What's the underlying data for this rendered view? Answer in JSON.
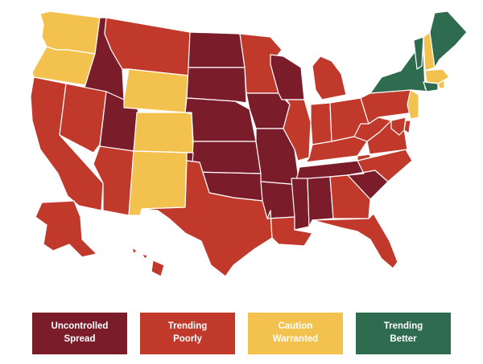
{
  "colors": {
    "uncontrolled": "#7B1C2A",
    "poorly": "#C0392B",
    "caution": "#F2C14E",
    "better": "#2E6B4F",
    "border": "#ffffff"
  },
  "legend": [
    {
      "key": "uncontrolled",
      "label": "Uncontrolled\nSpread"
    },
    {
      "key": "poorly",
      "label": "Trending\nPoorly"
    },
    {
      "key": "caution",
      "label": "Caution\nWarranted"
    },
    {
      "key": "better",
      "label": "Trending\nBetter"
    }
  ],
  "states": [
    {
      "id": "WA",
      "status": "caution"
    },
    {
      "id": "OR",
      "status": "caution"
    },
    {
      "id": "CA",
      "status": "poorly"
    },
    {
      "id": "ID",
      "status": "uncontrolled"
    },
    {
      "id": "NV",
      "status": "poorly"
    },
    {
      "id": "UT",
      "status": "uncontrolled"
    },
    {
      "id": "AZ",
      "status": "poorly"
    },
    {
      "id": "MT",
      "status": "poorly"
    },
    {
      "id": "WY",
      "status": "caution"
    },
    {
      "id": "CO",
      "status": "caution"
    },
    {
      "id": "NM",
      "status": "caution"
    },
    {
      "id": "ND",
      "status": "uncontrolled"
    },
    {
      "id": "SD",
      "status": "uncontrolled"
    },
    {
      "id": "NE",
      "status": "uncontrolled"
    },
    {
      "id": "KS",
      "status": "uncontrolled"
    },
    {
      "id": "OK",
      "status": "uncontrolled"
    },
    {
      "id": "TX",
      "status": "poorly"
    },
    {
      "id": "MN",
      "status": "poorly"
    },
    {
      "id": "IA",
      "status": "uncontrolled"
    },
    {
      "id": "MO",
      "status": "uncontrolled"
    },
    {
      "id": "AR",
      "status": "uncontrolled"
    },
    {
      "id": "LA",
      "status": "poorly"
    },
    {
      "id": "WI",
      "status": "uncontrolled"
    },
    {
      "id": "IL",
      "status": "poorly"
    },
    {
      "id": "MI",
      "status": "poorly"
    },
    {
      "id": "IN",
      "status": "poorly"
    },
    {
      "id": "OH",
      "status": "poorly"
    },
    {
      "id": "KY",
      "status": "poorly"
    },
    {
      "id": "TN",
      "status": "uncontrolled"
    },
    {
      "id": "MS",
      "status": "uncontrolled"
    },
    {
      "id": "AL",
      "status": "uncontrolled"
    },
    {
      "id": "GA",
      "status": "poorly"
    },
    {
      "id": "FL",
      "status": "poorly"
    },
    {
      "id": "SC",
      "status": "uncontrolled"
    },
    {
      "id": "NC",
      "status": "poorly"
    },
    {
      "id": "VA",
      "status": "poorly"
    },
    {
      "id": "WV",
      "status": "poorly"
    },
    {
      "id": "PA",
      "status": "poorly"
    },
    {
      "id": "NY",
      "status": "better"
    },
    {
      "id": "VT",
      "status": "better"
    },
    {
      "id": "NH",
      "status": "caution"
    },
    {
      "id": "ME",
      "status": "better"
    },
    {
      "id": "MA",
      "status": "caution"
    },
    {
      "id": "RI",
      "status": "caution"
    },
    {
      "id": "CT",
      "status": "better"
    },
    {
      "id": "NJ",
      "status": "caution"
    },
    {
      "id": "DE",
      "status": "poorly"
    },
    {
      "id": "MD",
      "status": "poorly"
    },
    {
      "id": "AK",
      "status": "poorly"
    },
    {
      "id": "HI",
      "status": "poorly"
    }
  ]
}
